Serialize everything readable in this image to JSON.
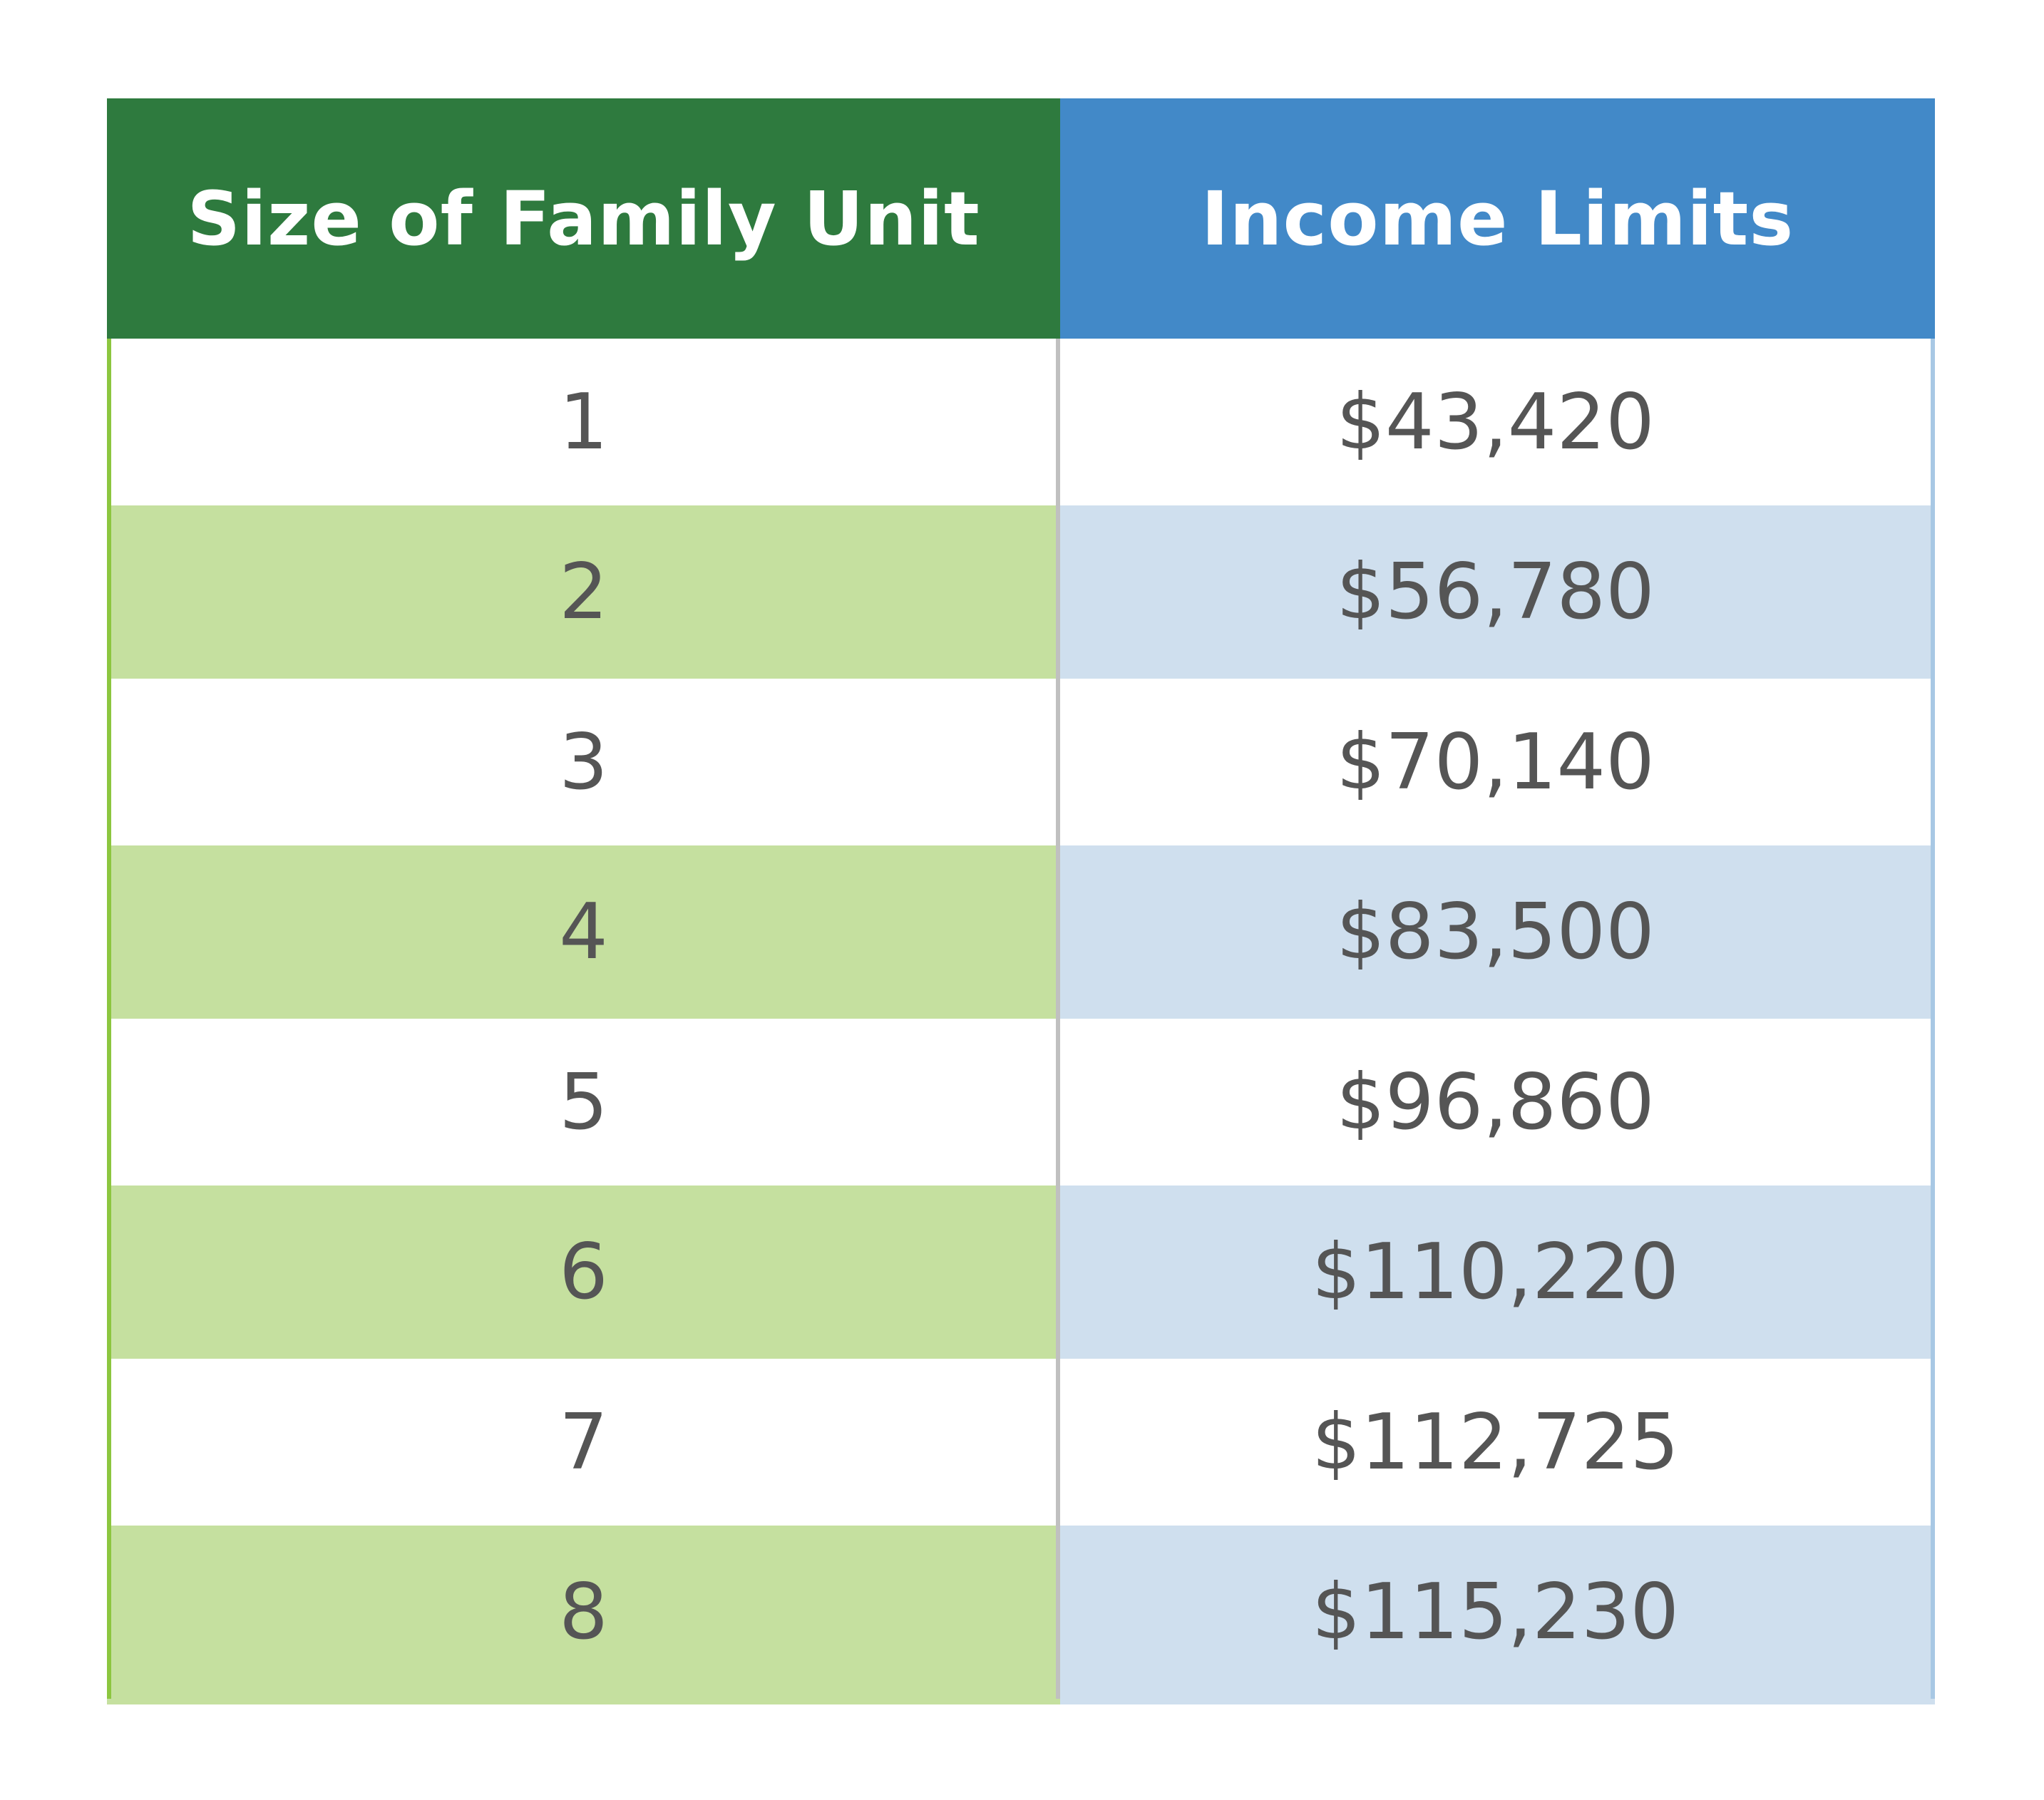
{
  "table": {
    "headers": {
      "size": "Size of Family Unit",
      "income": "Income Limits"
    },
    "rows": [
      {
        "size": "1",
        "income": "$43,420"
      },
      {
        "size": "2",
        "income": "$56,780"
      },
      {
        "size": "3",
        "income": "$70,140"
      },
      {
        "size": "4",
        "income": "$83,500"
      },
      {
        "size": "5",
        "income": "$96,860"
      },
      {
        "size": "6",
        "income": "$110,220"
      },
      {
        "size": "7",
        "income": "$112,725"
      },
      {
        "size": "8",
        "income": "$115,230"
      }
    ]
  },
  "colors": {
    "header_left": "#2e7a3e",
    "header_right": "#4289c8",
    "row_tint_left": "#c5e09f",
    "row_tint_right": "#cfdfee",
    "text": "#555555"
  }
}
